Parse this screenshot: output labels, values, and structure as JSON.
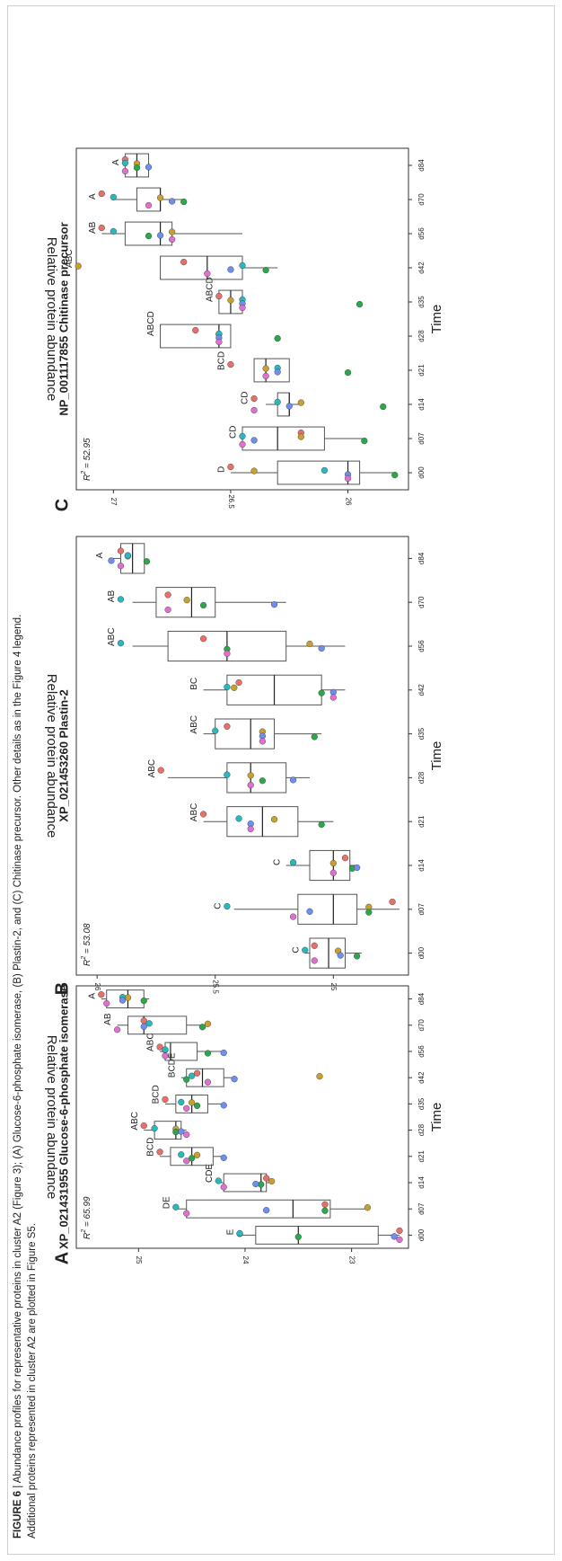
{
  "caption": {
    "label": "FIGURE 6",
    "text": "| Abundance profiles for representative proteins in cluster A2 (Figure 3); (A) Glucose-6-phosphate isomerase, (B) Plastin-2, and (C) Chitinase precursor. Other details as in the Figure 4 legend.",
    "line2": "Additional proteins represented in cluster A2 are plotted in Figure S5."
  },
  "colors": {
    "dots": [
      "#e8706a",
      "#c8a030",
      "#2aa84a",
      "#28b8c0",
      "#6e8ef0",
      "#e070d0"
    ],
    "box_stroke": "#555555",
    "axis": "#333333"
  },
  "chart_data": [
    {
      "type": "box",
      "panel_letter": "A",
      "title": "XP_021431955 Glucose-6-phosphate isomerase",
      "xlabel": "Time",
      "ylabel": "Relative protein abundance",
      "r2": "= 65.99",
      "ylim": [
        22.55,
        25.5
      ],
      "yticks": [
        23,
        24,
        25
      ],
      "categories": [
        "d00",
        "d07",
        "d14",
        "d21",
        "d28",
        "d35",
        "d42",
        "d56",
        "d70",
        "d84"
      ],
      "letters": [
        "E",
        "DE",
        "CDE",
        "BCD",
        "ABC",
        "BCD",
        "BCDE",
        "ABC",
        "AB",
        "A"
      ],
      "boxes": [
        {
          "q1": 22.75,
          "median": 23.5,
          "q3": 23.9,
          "wlo": 22.55,
          "whi": 24.05
        },
        {
          "q1": 23.2,
          "median": 23.55,
          "q3": 24.55,
          "wlo": 22.85,
          "whi": 24.65
        },
        {
          "q1": 23.8,
          "median": 23.85,
          "q3": 24.2,
          "wlo": 23.75,
          "whi": 24.25
        },
        {
          "q1": 24.3,
          "median": 24.5,
          "q3": 24.7,
          "wlo": 24.2,
          "whi": 24.8
        },
        {
          "q1": 24.6,
          "median": 24.65,
          "q3": 24.85,
          "wlo": 24.55,
          "whi": 24.95
        },
        {
          "q1": 24.35,
          "median": 24.5,
          "q3": 24.65,
          "wlo": 24.2,
          "whi": 24.75
        },
        {
          "q1": 24.2,
          "median": 24.4,
          "q3": 24.55,
          "wlo": 24.1,
          "whi": 24.6
        },
        {
          "q1": 24.45,
          "median": 24.7,
          "q3": 24.75,
          "wlo": 24.2,
          "whi": 24.8
        },
        {
          "q1": 24.55,
          "median": 24.95,
          "q3": 25.1,
          "wlo": 24.35,
          "whi": 25.2
        },
        {
          "q1": 24.95,
          "median": 25.1,
          "q3": 25.3,
          "wlo": 24.9,
          "whi": 25.35
        }
      ],
      "points": [
        [
          22.55,
          24.05,
          23.5,
          24.05,
          22.6,
          22.55
        ],
        [
          23.25,
          22.85,
          23.25,
          24.65,
          23.8,
          24.55
        ],
        [
          23.8,
          23.75,
          23.85,
          24.25,
          23.9,
          24.2
        ],
        [
          24.8,
          24.45,
          24.5,
          24.6,
          24.2,
          24.55
        ],
        [
          24.95,
          24.65,
          24.65,
          24.85,
          24.6,
          24.55
        ],
        [
          24.75,
          24.5,
          24.45,
          24.6,
          24.2,
          24.55
        ],
        [
          24.45,
          23.3,
          24.55,
          24.5,
          24.1,
          24.35
        ],
        [
          24.8,
          24.75,
          24.35,
          24.75,
          24.2,
          24.75
        ],
        [
          24.95,
          24.35,
          24.4,
          24.9,
          24.95,
          25.2
        ],
        [
          25.35,
          25.1,
          24.95,
          25.15,
          25.15,
          25.3
        ]
      ]
    },
    {
      "type": "box",
      "panel_letter": "B",
      "title": "XP_021453260 Plastin-2",
      "xlabel": "Time",
      "ylabel": "Relative protein abundance",
      "r2": "= 53.08",
      "ylim": [
        24.72,
        26.05
      ],
      "yticks": [
        25.0,
        25.5,
        26.0
      ],
      "categories": [
        "d00",
        "d07",
        "d14",
        "d21",
        "d28",
        "d35",
        "d42",
        "d56",
        "d70",
        "d84"
      ],
      "letters": [
        "C",
        "C",
        "C",
        "ABC",
        "ABC",
        "ABC",
        "BC",
        "ABC",
        "AB",
        "A"
      ],
      "boxes": [
        {
          "q1": 24.95,
          "median": 25.02,
          "q3": 25.1,
          "wlo": 24.88,
          "whi": 25.12
        },
        {
          "q1": 24.9,
          "median": 25.0,
          "q3": 25.15,
          "wlo": 24.72,
          "whi": 25.42
        },
        {
          "q1": 24.93,
          "median": 25.0,
          "q3": 25.1,
          "wlo": 24.9,
          "whi": 25.2
        },
        {
          "q1": 25.15,
          "median": 25.3,
          "q3": 25.45,
          "wlo": 25.0,
          "whi": 25.55
        },
        {
          "q1": 25.2,
          "median": 25.35,
          "q3": 25.45,
          "wlo": 25.1,
          "whi": 25.7
        },
        {
          "q1": 25.25,
          "median": 25.35,
          "q3": 25.5,
          "wlo": 25.05,
          "whi": 25.55
        },
        {
          "q1": 25.05,
          "median": 25.25,
          "q3": 25.45,
          "wlo": 24.95,
          "whi": 25.55
        },
        {
          "q1": 25.2,
          "median": 25.45,
          "q3": 25.7,
          "wlo": 24.95,
          "whi": 25.85
        },
        {
          "q1": 25.5,
          "median": 25.6,
          "q3": 25.75,
          "wlo": 25.2,
          "whi": 25.85
        },
        {
          "q1": 25.8,
          "median": 25.85,
          "q3": 25.9,
          "wlo": 25.8,
          "whi": 25.95
        }
      ],
      "points": [
        [
          25.08,
          24.98,
          24.9,
          25.12,
          24.97,
          25.08
        ],
        [
          24.75,
          24.85,
          24.85,
          25.45,
          25.1,
          25.17
        ],
        [
          24.95,
          25.0,
          24.92,
          25.17,
          24.9,
          25.0
        ],
        [
          25.55,
          25.25,
          25.05,
          25.4,
          25.35,
          25.35
        ],
        [
          25.73,
          25.35,
          25.3,
          25.45,
          25.17,
          25.35
        ],
        [
          25.45,
          25.3,
          25.08,
          25.5,
          25.3,
          25.3
        ],
        [
          25.4,
          25.42,
          25.05,
          25.45,
          25.0,
          25.0
        ],
        [
          25.55,
          25.1,
          25.45,
          25.9,
          25.05,
          25.45
        ],
        [
          25.7,
          25.62,
          25.55,
          25.9,
          25.25,
          25.7
        ],
        [
          25.9,
          25.87,
          25.79,
          25.87,
          25.94,
          25.9
        ]
      ]
    },
    {
      "type": "box",
      "panel_letter": "C",
      "title": "NP_001117855 Chitinase precursor",
      "xlabel": "Time",
      "ylabel": "Relative protein abundance",
      "r2": "= 52.95",
      "ylim": [
        25.78,
        27.12
      ],
      "yticks": [
        26.0,
        26.5,
        27.0
      ],
      "categories": [
        "d00",
        "d07",
        "d14",
        "d21",
        "d28",
        "d35",
        "d42",
        "d56",
        "d70",
        "d84"
      ],
      "letters": [
        "D",
        "CD",
        "CD",
        "BCD",
        "ABCD",
        "ABCD",
        "ABC",
        "AB",
        "A",
        "A"
      ],
      "boxes": [
        {
          "q1": 25.95,
          "median": 26.0,
          "q3": 26.3,
          "wlo": 25.8,
          "whi": 26.5
        },
        {
          "q1": 26.1,
          "median": 26.3,
          "q3": 26.45,
          "wlo": 25.93,
          "whi": 26.45
        },
        {
          "q1": 26.25,
          "median": 26.25,
          "q3": 26.3,
          "wlo": 26.2,
          "whi": 26.35
        },
        {
          "q1": 26.25,
          "median": 26.35,
          "q3": 26.4,
          "wlo": 26.25,
          "whi": 26.4
        },
        {
          "q1": 26.5,
          "median": 26.55,
          "q3": 26.8,
          "wlo": 26.5,
          "whi": 26.8
        },
        {
          "q1": 26.45,
          "median": 26.5,
          "q3": 26.55,
          "wlo": 26.45,
          "whi": 26.55
        },
        {
          "q1": 26.45,
          "median": 26.6,
          "q3": 26.8,
          "wlo": 26.3,
          "whi": 26.8
        },
        {
          "q1": 26.75,
          "median": 26.8,
          "q3": 26.95,
          "wlo": 26.45,
          "whi": 27.05
        },
        {
          "q1": 26.8,
          "median": 26.8,
          "q3": 26.9,
          "wlo": 26.7,
          "whi": 27.0
        },
        {
          "q1": 26.85,
          "median": 26.9,
          "q3": 26.95,
          "wlo": 26.85,
          "whi": 26.95
        }
      ],
      "points": [
        [
          26.5,
          26.4,
          25.8,
          26.1,
          26.0,
          26.0
        ],
        [
          26.2,
          26.2,
          25.93,
          26.45,
          26.4,
          26.45
        ],
        [
          26.4,
          26.2,
          25.85,
          26.3,
          26.25,
          26.4
        ],
        [
          26.5,
          26.35,
          26.0,
          26.3,
          26.3,
          26.35
        ],
        [
          26.65,
          26.55,
          26.3,
          26.55,
          26.55,
          26.55
        ],
        [
          26.55,
          26.5,
          25.95,
          26.45,
          26.45,
          26.45
        ],
        [
          26.7,
          27.15,
          26.35,
          26.45,
          26.5,
          26.6
        ],
        [
          27.05,
          26.75,
          26.85,
          27.0,
          26.8,
          26.75
        ],
        [
          27.05,
          26.8,
          26.7,
          27.0,
          26.75,
          26.85
        ],
        [
          26.95,
          26.9,
          26.9,
          26.95,
          26.85,
          26.95
        ]
      ]
    }
  ]
}
